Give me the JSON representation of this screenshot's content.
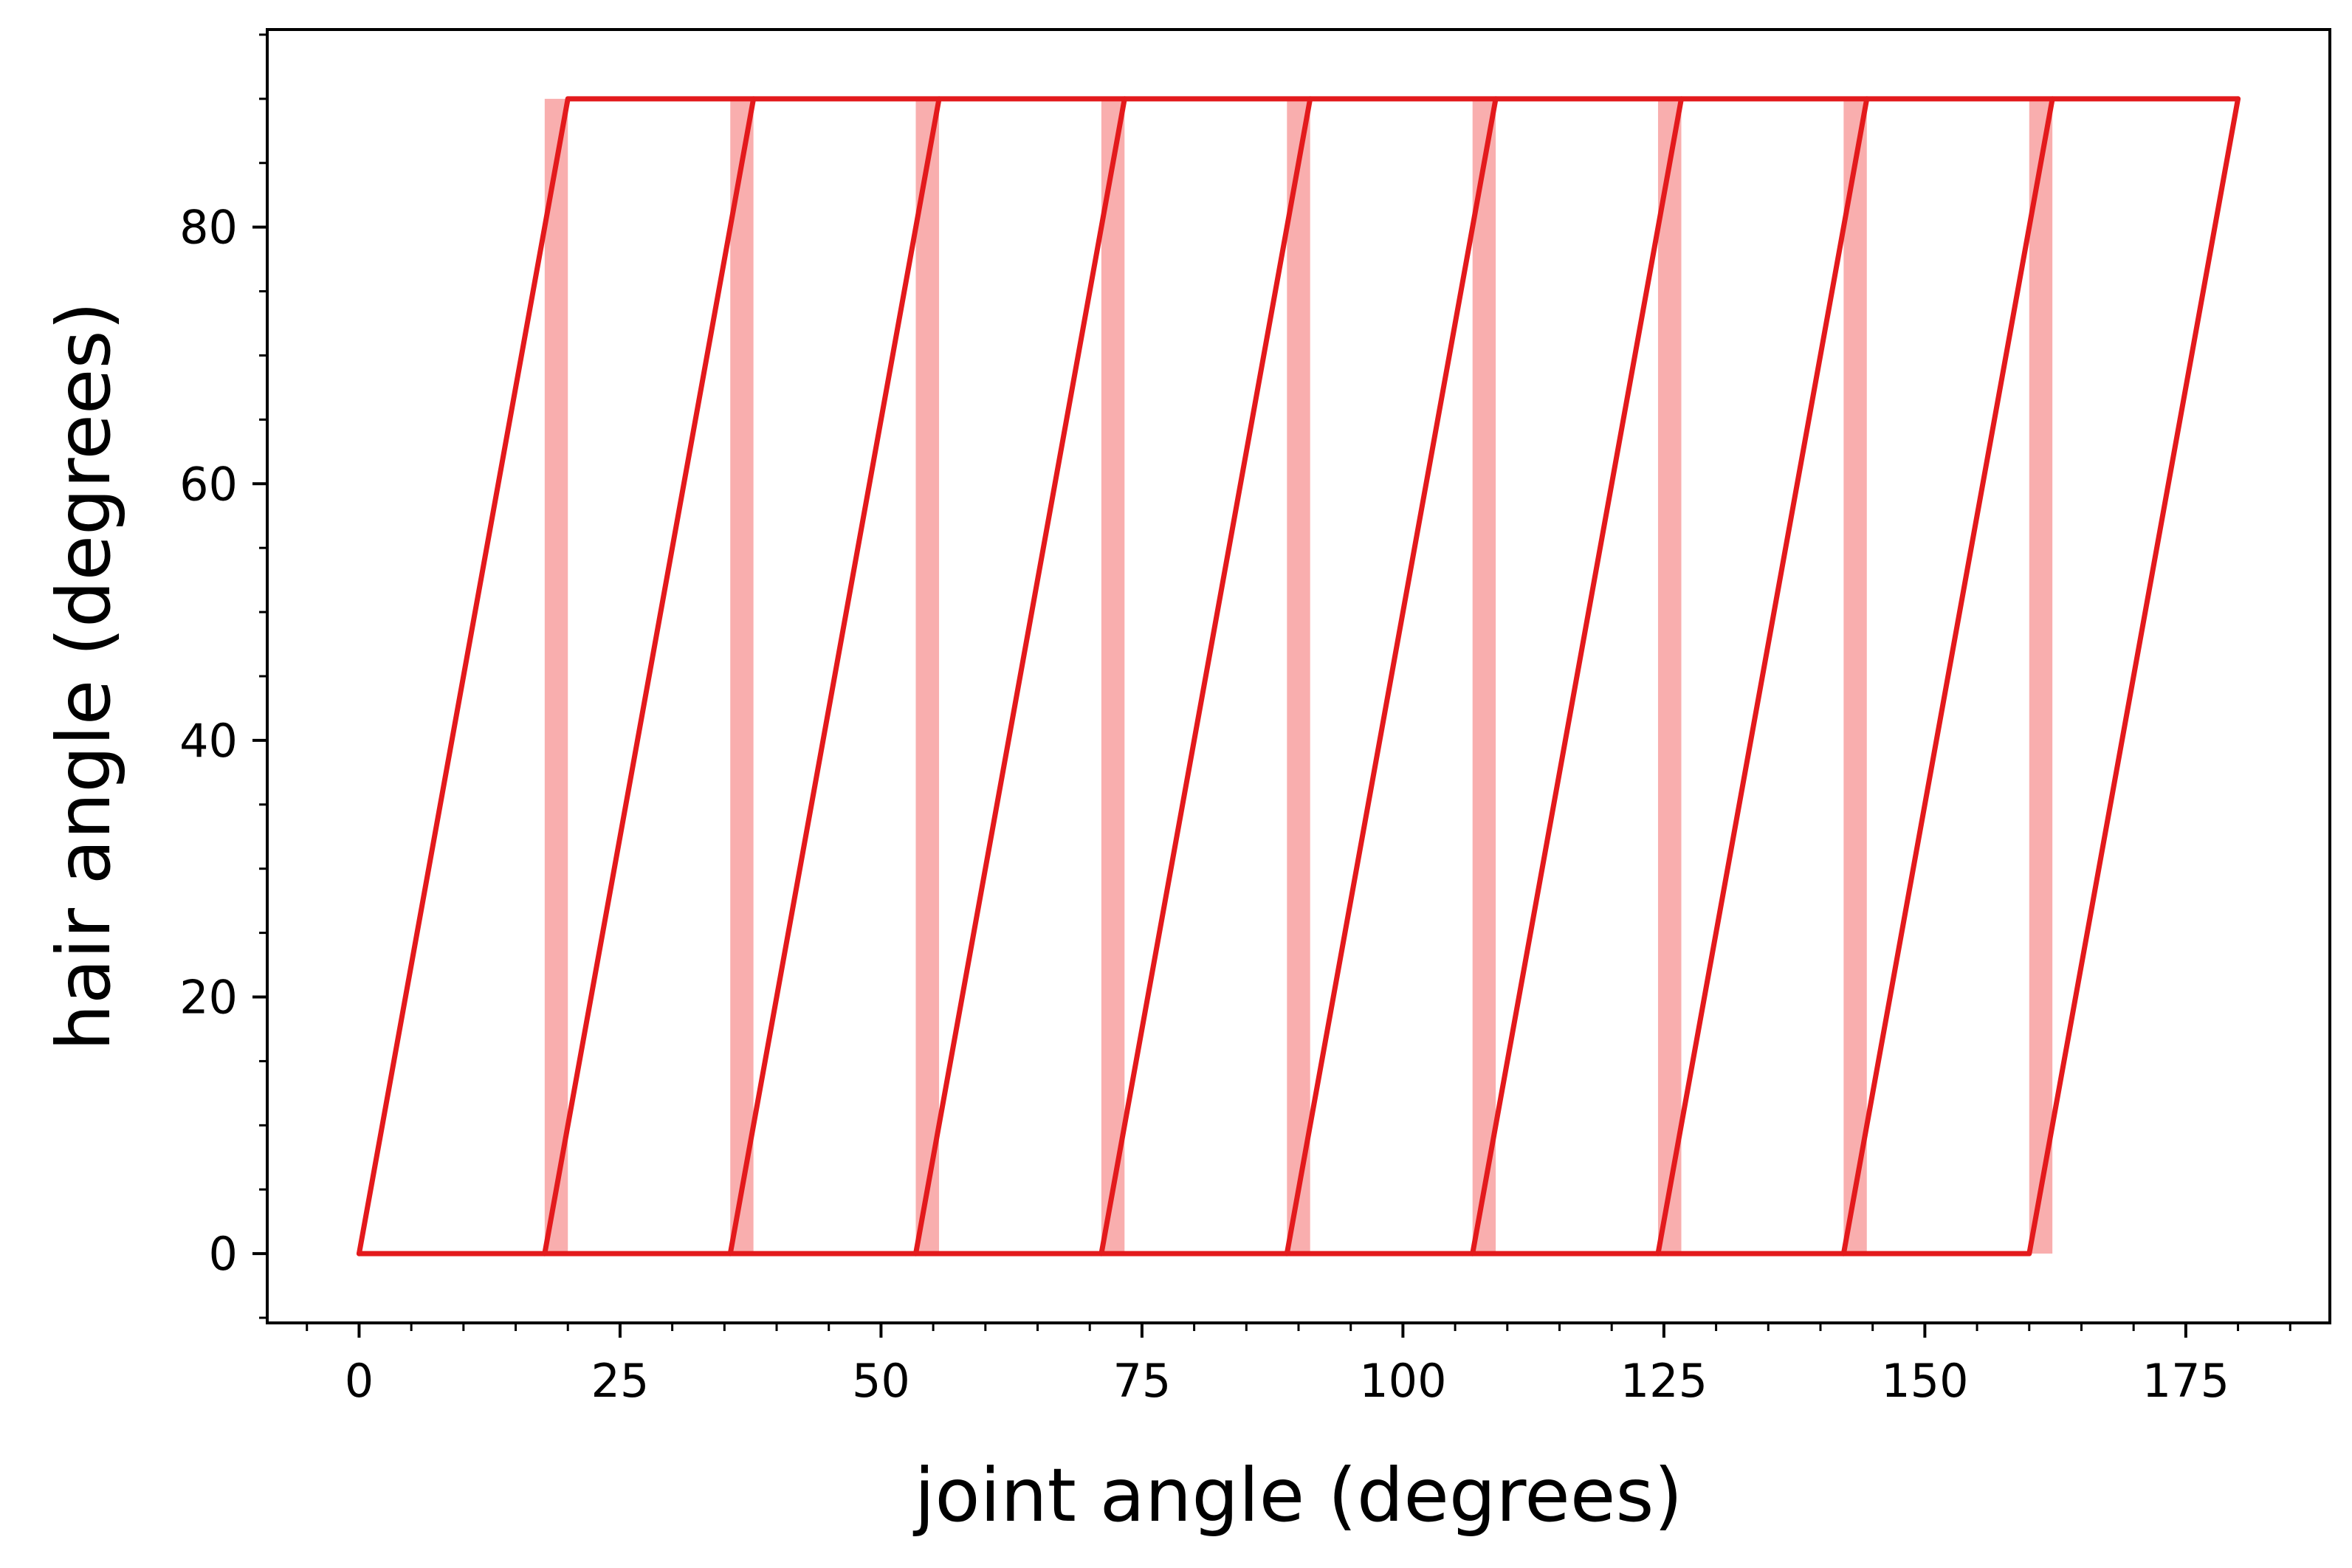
{
  "chart_data": {
    "type": "line",
    "title": "",
    "xlabel": "joint angle (degrees)",
    "ylabel": "hair angle (degrees)",
    "xlim": [
      -8.8,
      188.8
    ],
    "ylim": [
      -5.4,
      95.4
    ],
    "xticks": [
      0,
      25,
      50,
      75,
      100,
      125,
      150,
      175
    ],
    "yticks": [
      0,
      20,
      40,
      60,
      80
    ],
    "x_minor_step": 5,
    "y_minor_step": 5,
    "grid": false,
    "legend": "none",
    "colors": {
      "line": "#e31a1c",
      "band": "#f8a0a0",
      "axes": "#000000"
    },
    "series": [
      {
        "x": [
          0,
          20,
          37.78,
          55.56,
          73.33,
          91.11,
          108.89,
          126.67,
          144.44,
          162.22,
          180
        ],
        "y": [
          0,
          90,
          90,
          90,
          90,
          90,
          90,
          90,
          90,
          90,
          90
        ]
      },
      {
        "x": [
          0,
          17.78,
          35.56,
          53.33,
          71.11,
          88.89,
          106.67,
          124.44,
          142.22,
          160,
          180
        ],
        "y": [
          0,
          0,
          0,
          0,
          0,
          0,
          0,
          0,
          0,
          0,
          90
        ]
      },
      {
        "x": [
          17.78,
          37.78
        ],
        "y": [
          0,
          90
        ]
      },
      {
        "x": [
          35.56,
          55.56
        ],
        "y": [
          0,
          90
        ]
      },
      {
        "x": [
          53.33,
          73.33
        ],
        "y": [
          0,
          90
        ]
      },
      {
        "x": [
          71.11,
          91.11
        ],
        "y": [
          0,
          90
        ]
      },
      {
        "x": [
          88.89,
          108.89
        ],
        "y": [
          0,
          90
        ]
      },
      {
        "x": [
          106.67,
          126.67
        ],
        "y": [
          0,
          90
        ]
      },
      {
        "x": [
          124.44,
          144.44
        ],
        "y": [
          0,
          90
        ]
      },
      {
        "x": [
          142.22,
          162.22
        ],
        "y": [
          0,
          90
        ]
      }
    ],
    "bands": [
      {
        "x0": 17.78,
        "x1": 20.0,
        "y0": 0,
        "y1": 90
      },
      {
        "x0": 35.56,
        "x1": 37.78,
        "y0": 0,
        "y1": 90
      },
      {
        "x0": 53.33,
        "x1": 55.56,
        "y0": 0,
        "y1": 90
      },
      {
        "x0": 71.11,
        "x1": 73.33,
        "y0": 0,
        "y1": 90
      },
      {
        "x0": 88.89,
        "x1": 91.11,
        "y0": 0,
        "y1": 90
      },
      {
        "x0": 106.67,
        "x1": 108.89,
        "y0": 0,
        "y1": 90
      },
      {
        "x0": 124.44,
        "x1": 126.67,
        "y0": 0,
        "y1": 90
      },
      {
        "x0": 142.22,
        "x1": 144.44,
        "y0": 0,
        "y1": 90
      },
      {
        "x0": 160.0,
        "x1": 162.22,
        "y0": 0,
        "y1": 90
      }
    ]
  }
}
